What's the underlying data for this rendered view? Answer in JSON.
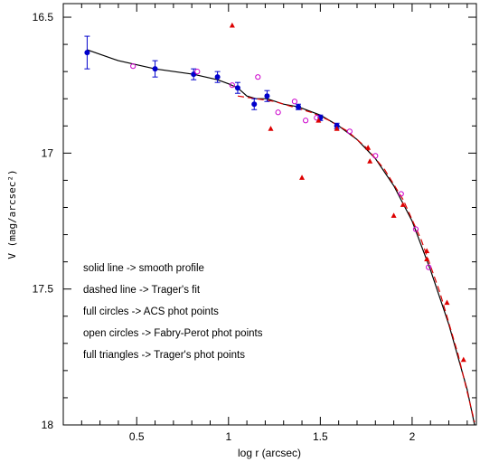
{
  "chart_data": {
    "type": "scatter",
    "title": "",
    "xlabel": "log r (arcsec)",
    "ylabel": "V (mag/arcsec²)",
    "xlim": [
      0.1,
      2.35
    ],
    "ylim": [
      18.0,
      16.45
    ],
    "y_inverted": true,
    "grid": false,
    "xticks": [
      0.5,
      1.0,
      1.5,
      2.0
    ],
    "xtick_labels": [
      "0.5",
      "1",
      "1.5",
      "2"
    ],
    "yticks": [
      16.5,
      17.0,
      17.5,
      18.0
    ],
    "ytick_labels": [
      "16.5",
      "17",
      "17.5",
      "18"
    ],
    "annotations": [
      "solid line -> smooth profile",
      "dashed line -> Trager's fit",
      "full circles -> ACS phot points",
      "open circles -> Fabry-Perot phot points",
      "full triangles -> Trager's phot points"
    ],
    "series": [
      {
        "marker": "full-circle",
        "color": "#0000cc",
        "points": [
          {
            "x": 0.23,
            "y": 16.63,
            "err": 0.06
          },
          {
            "x": 0.6,
            "y": 16.69,
            "err": 0.03
          },
          {
            "x": 0.81,
            "y": 16.71,
            "err": 0.02
          },
          {
            "x": 0.94,
            "y": 16.72,
            "err": 0.02
          },
          {
            "x": 1.05,
            "y": 16.76,
            "err": 0.02
          },
          {
            "x": 1.14,
            "y": 16.82,
            "err": 0.02
          },
          {
            "x": 1.21,
            "y": 16.79,
            "err": 0.02
          },
          {
            "x": 1.38,
            "y": 16.83,
            "err": 0.01
          },
          {
            "x": 1.5,
            "y": 16.87,
            "err": 0.01
          },
          {
            "x": 1.59,
            "y": 16.9,
            "err": 0.01
          }
        ]
      },
      {
        "marker": "open-circle",
        "color": "#cc00cc",
        "points": [
          {
            "x": 0.48,
            "y": 16.68
          },
          {
            "x": 0.83,
            "y": 16.7
          },
          {
            "x": 1.02,
            "y": 16.75
          },
          {
            "x": 1.16,
            "y": 16.72
          },
          {
            "x": 1.27,
            "y": 16.85
          },
          {
            "x": 1.36,
            "y": 16.81
          },
          {
            "x": 1.42,
            "y": 16.88
          },
          {
            "x": 1.48,
            "y": 16.87
          },
          {
            "x": 1.66,
            "y": 16.92
          },
          {
            "x": 1.8,
            "y": 17.01
          },
          {
            "x": 1.94,
            "y": 17.15
          },
          {
            "x": 2.02,
            "y": 17.28
          },
          {
            "x": 2.09,
            "y": 17.42
          }
        ]
      },
      {
        "marker": "full-triangle",
        "color": "#dd0000",
        "points": [
          {
            "x": 1.02,
            "y": 16.53
          },
          {
            "x": 1.23,
            "y": 16.91
          },
          {
            "x": 1.4,
            "y": 17.09
          },
          {
            "x": 1.49,
            "y": 16.88
          },
          {
            "x": 1.59,
            "y": 16.91
          },
          {
            "x": 1.76,
            "y": 16.98
          },
          {
            "x": 1.77,
            "y": 17.03
          },
          {
            "x": 1.9,
            "y": 17.23
          },
          {
            "x": 1.95,
            "y": 17.19
          },
          {
            "x": 2.08,
            "y": 17.36
          },
          {
            "x": 2.08,
            "y": 17.39
          },
          {
            "x": 2.19,
            "y": 17.55
          },
          {
            "x": 2.28,
            "y": 17.76
          }
        ]
      }
    ],
    "curves": [
      {
        "style": "solid",
        "color": "#000000",
        "x": [
          0.23,
          0.4,
          0.6,
          0.81,
          0.94,
          1.0,
          1.05,
          1.1,
          1.15,
          1.21,
          1.3,
          1.38,
          1.5,
          1.6,
          1.7,
          1.8,
          1.9,
          2.0,
          2.1,
          2.2,
          2.3,
          2.34
        ],
        "y": [
          16.62,
          16.66,
          16.69,
          16.71,
          16.73,
          16.745,
          16.76,
          16.79,
          16.8,
          16.8,
          16.82,
          16.83,
          16.86,
          16.9,
          16.95,
          17.02,
          17.12,
          17.25,
          17.43,
          17.63,
          17.87,
          18.0
        ]
      },
      {
        "style": "dashed",
        "color": "#dd0000",
        "x": [
          1.05,
          1.15,
          1.25,
          1.35,
          1.45,
          1.55,
          1.65,
          1.75,
          1.85,
          1.95,
          2.05,
          2.15,
          2.25,
          2.34
        ],
        "y": [
          16.79,
          16.8,
          16.81,
          16.83,
          16.85,
          16.88,
          16.92,
          16.98,
          17.06,
          17.17,
          17.32,
          17.51,
          17.74,
          17.99
        ]
      }
    ]
  }
}
